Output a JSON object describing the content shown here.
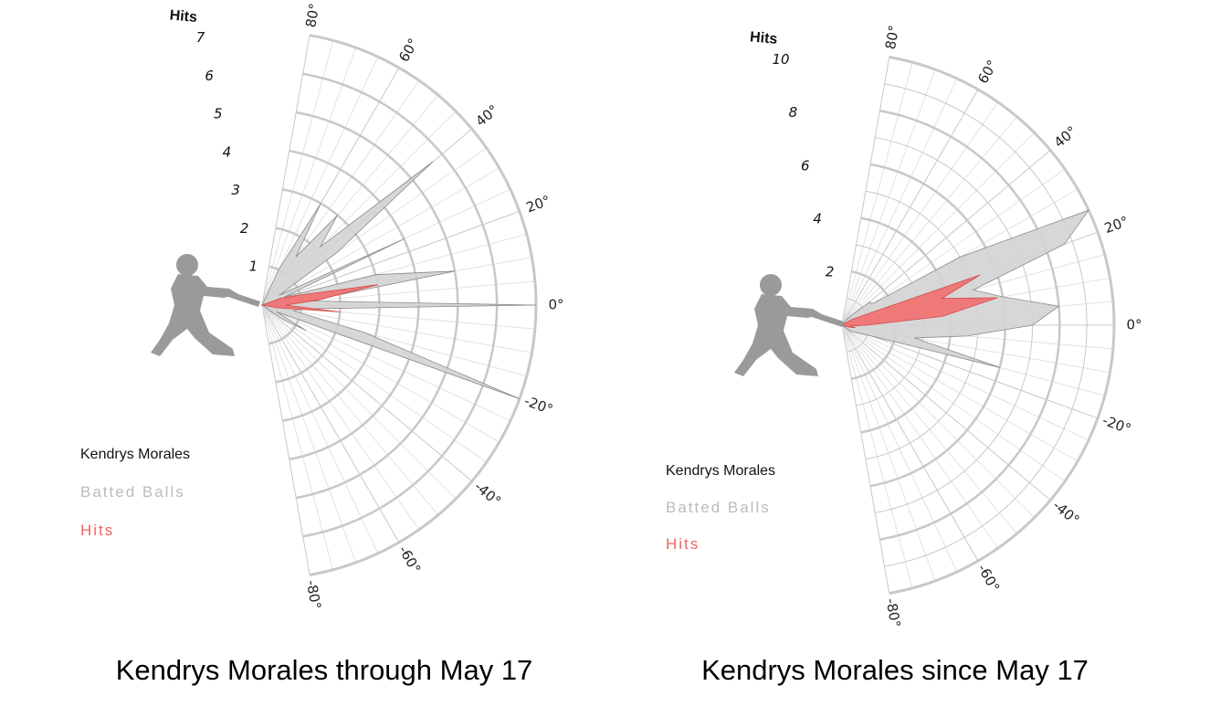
{
  "legend": {
    "player": "Kendrys Morales",
    "batted_balls": "Batted Balls",
    "hits": "Hits"
  },
  "colors": {
    "batted_fill": "#d3d3d3",
    "batted_stroke": "#8a8a8a",
    "hits_fill": "#f07373",
    "hits_stroke": "#d24b4b",
    "grid": "#c8c8c8",
    "silhouette": "#9a9a9a",
    "legend_player": "#111111",
    "legend_batted": "#bcbcbc",
    "legend_hits": "#f06363"
  },
  "icons": {
    "batter": "batter-silhouette-icon"
  },
  "chart_data": [
    {
      "type": "radar",
      "title": "Kendrys Morales through May 17",
      "radial_label": "Hits",
      "r_ticks": [
        1,
        2,
        3,
        4,
        5,
        6,
        7
      ],
      "r_max": 7,
      "angle_ticks": [
        "80°",
        "60°",
        "40°",
        "20°",
        "0°",
        "-20°",
        "-40°",
        "-60°",
        "-80°"
      ],
      "angle_range": [
        -80,
        80
      ],
      "angle_step": 5,
      "series": [
        {
          "name": "Batted Balls",
          "points": [
            [
              -35,
              0.6
            ],
            [
              -30,
              1.3
            ],
            [
              -25,
              0.4
            ],
            [
              -20,
              7.0
            ],
            [
              -15,
              2.7
            ],
            [
              -10,
              0.8
            ],
            [
              -5,
              1.1
            ],
            [
              0,
              7.0
            ],
            [
              5,
              1.2
            ],
            [
              10,
              5.0
            ],
            [
              15,
              3.0
            ],
            [
              20,
              0.6
            ],
            [
              25,
              4.0
            ],
            [
              30,
              0.5
            ],
            [
              35,
              2.3
            ],
            [
              40,
              5.7
            ],
            [
              45,
              2.1
            ],
            [
              50,
              3.0
            ],
            [
              55,
              1.5
            ],
            [
              60,
              3.0
            ],
            [
              65,
              1.0
            ]
          ]
        },
        {
          "name": "Hits",
          "points": [
            [
              -10,
              0.4
            ],
            [
              -5,
              2.0
            ],
            [
              0,
              0.6
            ],
            [
              5,
              1.4
            ],
            [
              10,
              3.0
            ],
            [
              15,
              1.0
            ],
            [
              20,
              0.5
            ]
          ]
        }
      ]
    },
    {
      "type": "radar",
      "title": "Kendrys Morales since May 17",
      "radial_label": "Hits",
      "r_ticks": [
        2,
        4,
        6,
        8,
        10
      ],
      "r_max": 10,
      "angle_ticks": [
        "80°",
        "60°",
        "40°",
        "20°",
        "0°",
        "-20°",
        "-40°",
        "-60°",
        "-80°"
      ],
      "angle_range": [
        -80,
        80
      ],
      "angle_step": 5,
      "series": [
        {
          "name": "Batted Balls",
          "points": [
            [
              -35,
              0.4
            ],
            [
              -30,
              0.5
            ],
            [
              -25,
              0.7
            ],
            [
              -20,
              1.2
            ],
            [
              -15,
              6.0
            ],
            [
              -10,
              2.7
            ],
            [
              -5,
              4.6
            ],
            [
              0,
              7.0
            ],
            [
              5,
              8.0
            ],
            [
              10,
              6.0
            ],
            [
              15,
              5.0
            ],
            [
              20,
              8.7
            ],
            [
              25,
              10.0
            ],
            [
              30,
              5.0
            ],
            [
              35,
              1.4
            ],
            [
              40,
              1.3
            ],
            [
              45,
              0.6
            ],
            [
              50,
              0.3
            ]
          ]
        },
        {
          "name": "Hits",
          "points": [
            [
              -15,
              0.3
            ],
            [
              -10,
              0.5
            ],
            [
              -5,
              0.3
            ],
            [
              0,
              0.9
            ],
            [
              5,
              3.7
            ],
            [
              10,
              5.8
            ],
            [
              15,
              3.8
            ],
            [
              20,
              5.4
            ],
            [
              25,
              0.8
            ],
            [
              30,
              0.4
            ]
          ]
        }
      ]
    }
  ]
}
